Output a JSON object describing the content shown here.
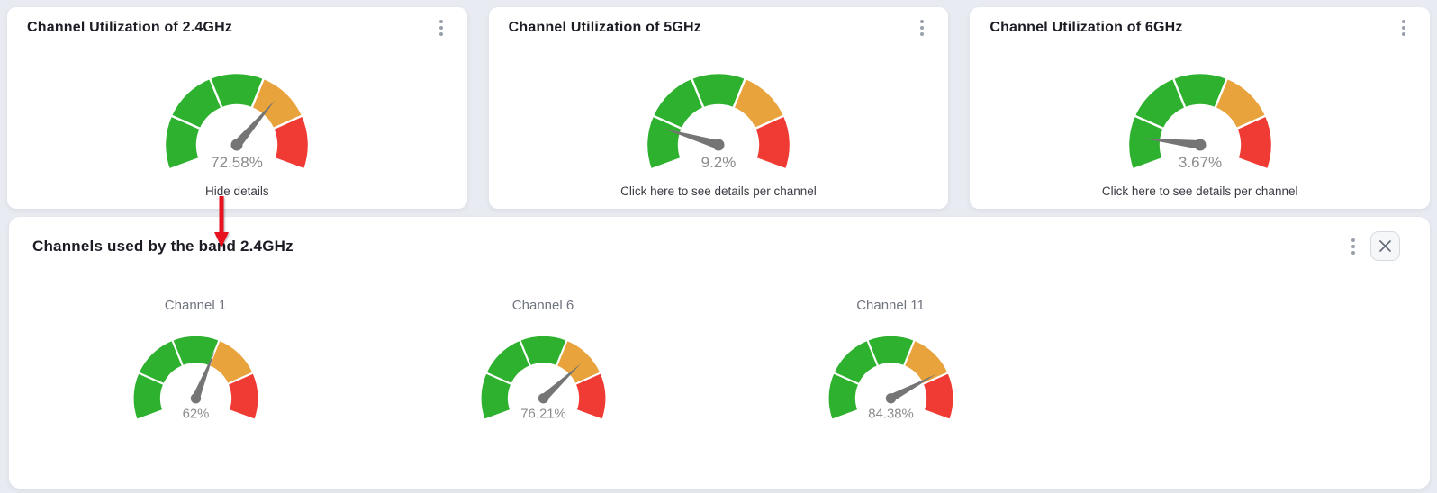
{
  "page": {
    "background": "#e9ebf2"
  },
  "gauge": {
    "segment_colors": [
      "#2eb12e",
      "#2eb12e",
      "#2eb12e",
      "#e8a33d",
      "#ef3b33"
    ],
    "segment_stops": [
      0,
      20,
      40,
      60,
      80,
      100
    ],
    "needle_color": "#757575",
    "value_color": "#8b8b8b"
  },
  "cards": [
    {
      "title": "Channel Utilization of 2.4GHz",
      "value": 72.58,
      "value_label": "72.58%",
      "action_label": "Hide details",
      "menu_icon": "kebab-menu"
    },
    {
      "title": "Channel Utilization of 5GHz",
      "value": 9.2,
      "value_label": "9.2%",
      "action_label": "Click here to see details per channel",
      "menu_icon": "kebab-menu"
    },
    {
      "title": "Channel Utilization of 6GHz",
      "value": 3.67,
      "value_label": "3.67%",
      "action_label": "Click here to see details per channel",
      "menu_icon": "kebab-menu"
    }
  ],
  "panel": {
    "title": "Channels used by the band 2.4GHz",
    "menu_icon": "kebab-menu",
    "close_icon": "x-close",
    "channels": [
      {
        "label": "Channel 1",
        "value": 62,
        "value_label": "62%"
      },
      {
        "label": "Channel 6",
        "value": 76.21,
        "value_label": "76.21%"
      },
      {
        "label": "Channel 11",
        "value": 84.38,
        "value_label": "84.38%"
      }
    ]
  },
  "annotation": {
    "arrow_color": "#e8131f",
    "direction": "down"
  },
  "chart_data": [
    {
      "type": "gauge",
      "title": "Channel Utilization of 2.4GHz",
      "value": 72.58,
      "unit": "%",
      "range": [
        0,
        100
      ],
      "bands": [
        {
          "from": 0,
          "to": 60,
          "color": "green"
        },
        {
          "from": 60,
          "to": 80,
          "color": "orange"
        },
        {
          "from": 80,
          "to": 100,
          "color": "red"
        }
      ]
    },
    {
      "type": "gauge",
      "title": "Channel Utilization of 5GHz",
      "value": 9.2,
      "unit": "%",
      "range": [
        0,
        100
      ],
      "bands": [
        {
          "from": 0,
          "to": 60,
          "color": "green"
        },
        {
          "from": 60,
          "to": 80,
          "color": "orange"
        },
        {
          "from": 80,
          "to": 100,
          "color": "red"
        }
      ]
    },
    {
      "type": "gauge",
      "title": "Channel Utilization of 6GHz",
      "value": 3.67,
      "unit": "%",
      "range": [
        0,
        100
      ],
      "bands": [
        {
          "from": 0,
          "to": 60,
          "color": "green"
        },
        {
          "from": 60,
          "to": 80,
          "color": "orange"
        },
        {
          "from": 80,
          "to": 100,
          "color": "red"
        }
      ]
    },
    {
      "type": "gauge",
      "title": "Channel 1",
      "value": 62,
      "unit": "%",
      "range": [
        0,
        100
      ],
      "bands": [
        {
          "from": 0,
          "to": 60,
          "color": "green"
        },
        {
          "from": 60,
          "to": 80,
          "color": "orange"
        },
        {
          "from": 80,
          "to": 100,
          "color": "red"
        }
      ]
    },
    {
      "type": "gauge",
      "title": "Channel 6",
      "value": 76.21,
      "unit": "%",
      "range": [
        0,
        100
      ],
      "bands": [
        {
          "from": 0,
          "to": 60,
          "color": "green"
        },
        {
          "from": 60,
          "to": 80,
          "color": "orange"
        },
        {
          "from": 80,
          "to": 100,
          "color": "red"
        }
      ]
    },
    {
      "type": "gauge",
      "title": "Channel 11",
      "value": 84.38,
      "unit": "%",
      "range": [
        0,
        100
      ],
      "bands": [
        {
          "from": 0,
          "to": 60,
          "color": "green"
        },
        {
          "from": 60,
          "to": 80,
          "color": "orange"
        },
        {
          "from": 80,
          "to": 100,
          "color": "red"
        }
      ]
    }
  ]
}
